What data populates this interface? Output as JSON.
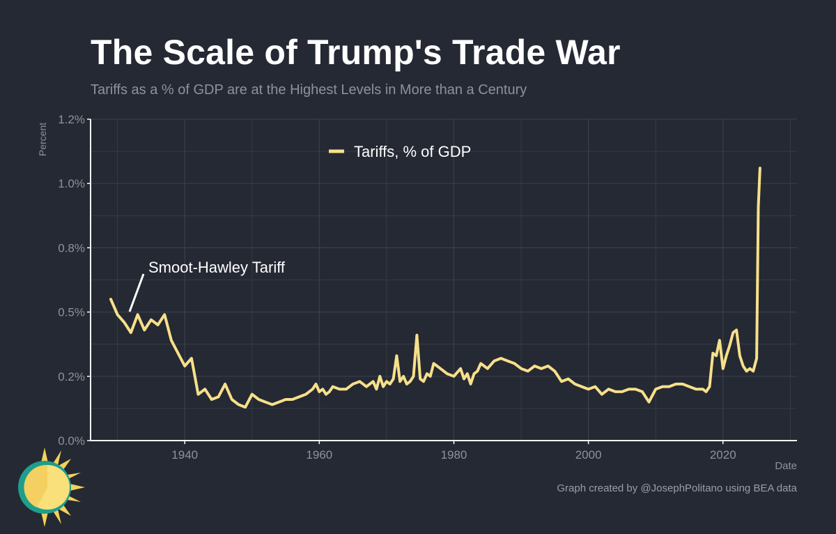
{
  "title": "The Scale of Trump's Trade War",
  "subtitle": "Tariffs as a % of GDP are at the Highest Levels in More than a Century",
  "credit": "Graph created by @JosephPolitano using BEA data",
  "colors": {
    "background": "#252933",
    "series": "#f7e08a",
    "grid": "#3a3f4b",
    "axis": "#ffffff",
    "tick_text": "#8e9299"
  },
  "chart_data": {
    "type": "line",
    "xlabel": "Date",
    "ylabel": "Percent",
    "xlim": [
      1926,
      2031
    ],
    "ylim": [
      0,
      1.25
    ],
    "x_ticks": [
      1940,
      1960,
      1980,
      2000,
      2020
    ],
    "y_ticks": [
      0,
      0.25,
      0.5,
      0.75,
      1.0,
      1.25
    ],
    "y_tick_labels": [
      "0.0%",
      "0.2%",
      "0.5%",
      "0.8%",
      "1.0%",
      "1.2%"
    ],
    "grid": true,
    "legend_position": "top-center",
    "series": [
      {
        "name": "Tariffs, % of GDP",
        "color": "#f7e08a",
        "x": [
          1929,
          1930,
          1931,
          1932,
          1933,
          1934,
          1935,
          1936,
          1937,
          1938,
          1939,
          1940,
          1941,
          1942,
          1943,
          1944,
          1945,
          1946,
          1947,
          1948,
          1949,
          1950,
          1951,
          1952,
          1953,
          1954,
          1955,
          1956,
          1957,
          1958,
          1959,
          1959.5,
          1960,
          1960.5,
          1961,
          1961.5,
          1962,
          1963,
          1964,
          1965,
          1966,
          1967,
          1968,
          1968.5,
          1969,
          1969.5,
          1970,
          1970.5,
          1971,
          1971.5,
          1972,
          1972.5,
          1973,
          1973.5,
          1974,
          1974.5,
          1975,
          1975.5,
          1976,
          1976.5,
          1977,
          1978,
          1979,
          1980,
          1981,
          1981.5,
          1982,
          1982.5,
          1983,
          1983.5,
          1984,
          1985,
          1986,
          1987,
          1988,
          1989,
          1990,
          1991,
          1992,
          1993,
          1994,
          1995,
          1996,
          1997,
          1998,
          1999,
          2000,
          2001,
          2002,
          2003,
          2004,
          2005,
          2006,
          2007,
          2008,
          2009,
          2010,
          2011,
          2012,
          2013,
          2014,
          2015,
          2016,
          2017,
          2017.5,
          2018,
          2018.5,
          2019,
          2019.5,
          2020,
          2020.5,
          2021,
          2021.5,
          2022,
          2022.5,
          2023,
          2023.5,
          2024,
          2024.5,
          2025,
          2025.25,
          2025.5
        ],
        "y": [
          0.55,
          0.49,
          0.46,
          0.42,
          0.49,
          0.43,
          0.47,
          0.45,
          0.49,
          0.39,
          0.34,
          0.29,
          0.32,
          0.18,
          0.2,
          0.16,
          0.17,
          0.22,
          0.16,
          0.14,
          0.13,
          0.18,
          0.16,
          0.15,
          0.14,
          0.15,
          0.16,
          0.16,
          0.17,
          0.18,
          0.2,
          0.22,
          0.19,
          0.2,
          0.18,
          0.19,
          0.21,
          0.2,
          0.2,
          0.22,
          0.23,
          0.21,
          0.23,
          0.2,
          0.25,
          0.21,
          0.23,
          0.22,
          0.24,
          0.33,
          0.23,
          0.25,
          0.22,
          0.23,
          0.25,
          0.41,
          0.24,
          0.23,
          0.26,
          0.25,
          0.3,
          0.28,
          0.26,
          0.25,
          0.28,
          0.24,
          0.26,
          0.22,
          0.26,
          0.27,
          0.3,
          0.28,
          0.31,
          0.32,
          0.31,
          0.3,
          0.28,
          0.27,
          0.29,
          0.28,
          0.29,
          0.27,
          0.23,
          0.24,
          0.22,
          0.21,
          0.2,
          0.21,
          0.18,
          0.2,
          0.19,
          0.19,
          0.2,
          0.2,
          0.19,
          0.15,
          0.2,
          0.21,
          0.21,
          0.22,
          0.22,
          0.21,
          0.2,
          0.2,
          0.19,
          0.21,
          0.34,
          0.33,
          0.39,
          0.28,
          0.33,
          0.37,
          0.42,
          0.43,
          0.33,
          0.29,
          0.27,
          0.28,
          0.27,
          0.32,
          0.91,
          1.06
        ]
      }
    ],
    "annotations": [
      {
        "text": "Smoot-Hawley Tariff",
        "x": 1930,
        "y": 0.49
      }
    ]
  }
}
